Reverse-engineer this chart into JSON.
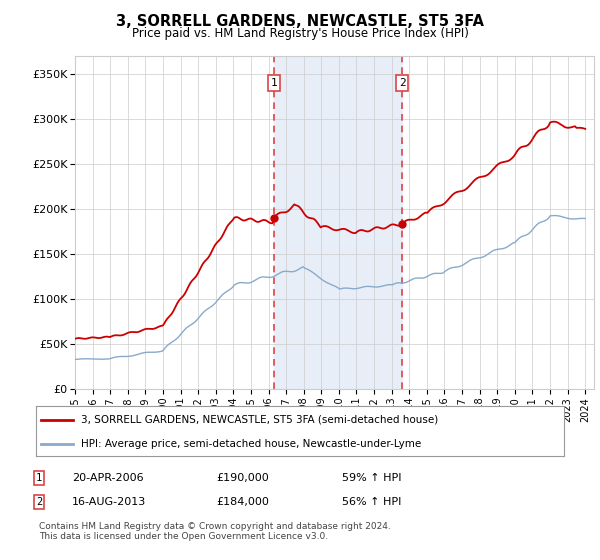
{
  "title": "3, SORRELL GARDENS, NEWCASTLE, ST5 3FA",
  "subtitle": "Price paid vs. HM Land Registry's House Price Index (HPI)",
  "legend_line1": "3, SORRELL GARDENS, NEWCASTLE, ST5 3FA (semi-detached house)",
  "legend_line2": "HPI: Average price, semi-detached house, Newcastle-under-Lyme",
  "annotation1": {
    "label": "1",
    "date": "20-APR-2006",
    "price": "£190,000",
    "hpi": "59% ↑ HPI"
  },
  "annotation2": {
    "label": "2",
    "date": "16-AUG-2013",
    "price": "£184,000",
    "hpi": "56% ↑ HPI"
  },
  "footer": "Contains HM Land Registry data © Crown copyright and database right 2024.\nThis data is licensed under the Open Government Licence v3.0.",
  "sale_color": "#cc0000",
  "hpi_color": "#88aacc",
  "vline_color": "#dd4444",
  "vline_x1": 2006.3,
  "vline_x2": 2013.6,
  "sale1_x": 2006.3,
  "sale1_y": 190000,
  "sale2_x": 2013.6,
  "sale2_y": 184000,
  "ylim": [
    0,
    370000
  ],
  "xlim_start": 1995,
  "xlim_end": 2024.5,
  "span_color": "#e8eef8",
  "plot_bg": "#ffffff",
  "grid_color": "#cccccc"
}
